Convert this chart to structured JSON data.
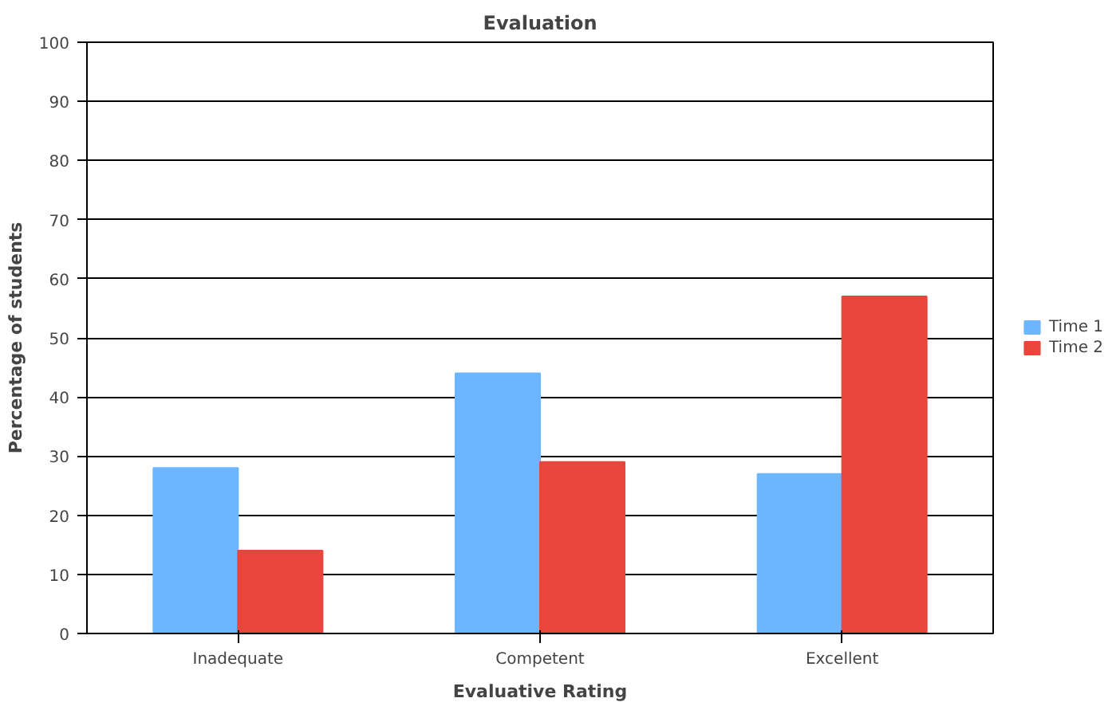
{
  "chart_data": {
    "type": "bar",
    "title": "Evaluation",
    "xlabel": "Evaluative Rating",
    "ylabel": "Percentage of students",
    "categories": [
      "Inadequate",
      "Competent",
      "Excellent"
    ],
    "series": [
      {
        "name": "Time 1",
        "color": "#6cb6ff",
        "values": [
          28,
          44,
          27
        ]
      },
      {
        "name": "Time 2",
        "color": "#e8453c",
        "values": [
          14,
          29,
          57
        ]
      }
    ],
    "ylim": [
      0,
      100
    ],
    "yticks": [
      0,
      10,
      20,
      30,
      40,
      50,
      60,
      70,
      80,
      90,
      100
    ],
    "grid": "y",
    "legend": "right"
  }
}
